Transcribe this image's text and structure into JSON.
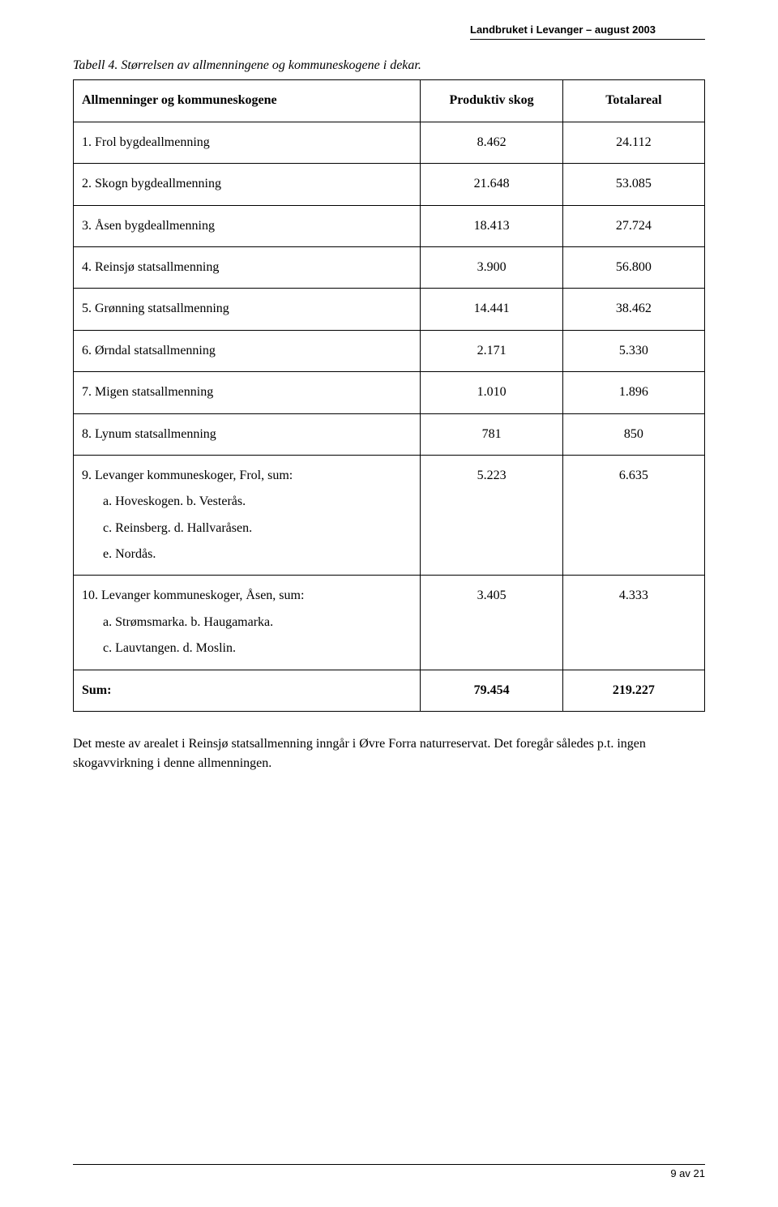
{
  "header": {
    "text": "Landbruket i Levanger – august 2003"
  },
  "caption": "Tabell 4. Størrelsen av allmenningene og kommuneskogene i dekar.",
  "table": {
    "columns": [
      "Allmenninger og kommuneskogene",
      "Produktiv skog",
      "Totalareal"
    ],
    "rows": [
      {
        "label": "1. Frol bygdeallmenning",
        "c2": "8.462",
        "c3": "24.112"
      },
      {
        "label": "2. Skogn bygdeallmenning",
        "c2": "21.648",
        "c3": "53.085"
      },
      {
        "label": "3. Åsen bygdeallmenning",
        "c2": "18.413",
        "c3": "27.724"
      },
      {
        "label": "4. Reinsjø statsallmenning",
        "c2": "3.900",
        "c3": "56.800"
      },
      {
        "label": "5. Grønning statsallmenning",
        "c2": "14.441",
        "c3": "38.462"
      },
      {
        "label": "6. Ørndal statsallmenning",
        "c2": "2.171",
        "c3": "5.330"
      },
      {
        "label": "7. Migen statsallmenning",
        "c2": "1.010",
        "c3": "1.896"
      },
      {
        "label": "8. Lynum statsallmenning",
        "c2": "781",
        "c3": "850"
      },
      {
        "label": "9. Levanger kommuneskoger, Frol, sum:",
        "c2": "5.223",
        "c3": "6.635",
        "sub": [
          "a. Hoveskogen. b. Vesterås.",
          "c. Reinsberg. d. Hallvaråsen.",
          "e. Nordås."
        ]
      },
      {
        "label": "10. Levanger kommuneskoger, Åsen, sum:",
        "c2": "3.405",
        "c3": "4.333",
        "sub": [
          "a.   Strømsmarka. b. Haugamarka.",
          "c. Lauvtangen. d. Moslin."
        ]
      }
    ],
    "sum": {
      "label": "Sum:",
      "c2": "79.454",
      "c3": "219.227"
    }
  },
  "bodytext": "Det meste av arealet i Reinsjø statsallmenning inngår i Øvre Forra naturreservat. Det foregår således p.t. ingen skogavvirkning i denne allmenningen.",
  "footer": "9 av 21"
}
